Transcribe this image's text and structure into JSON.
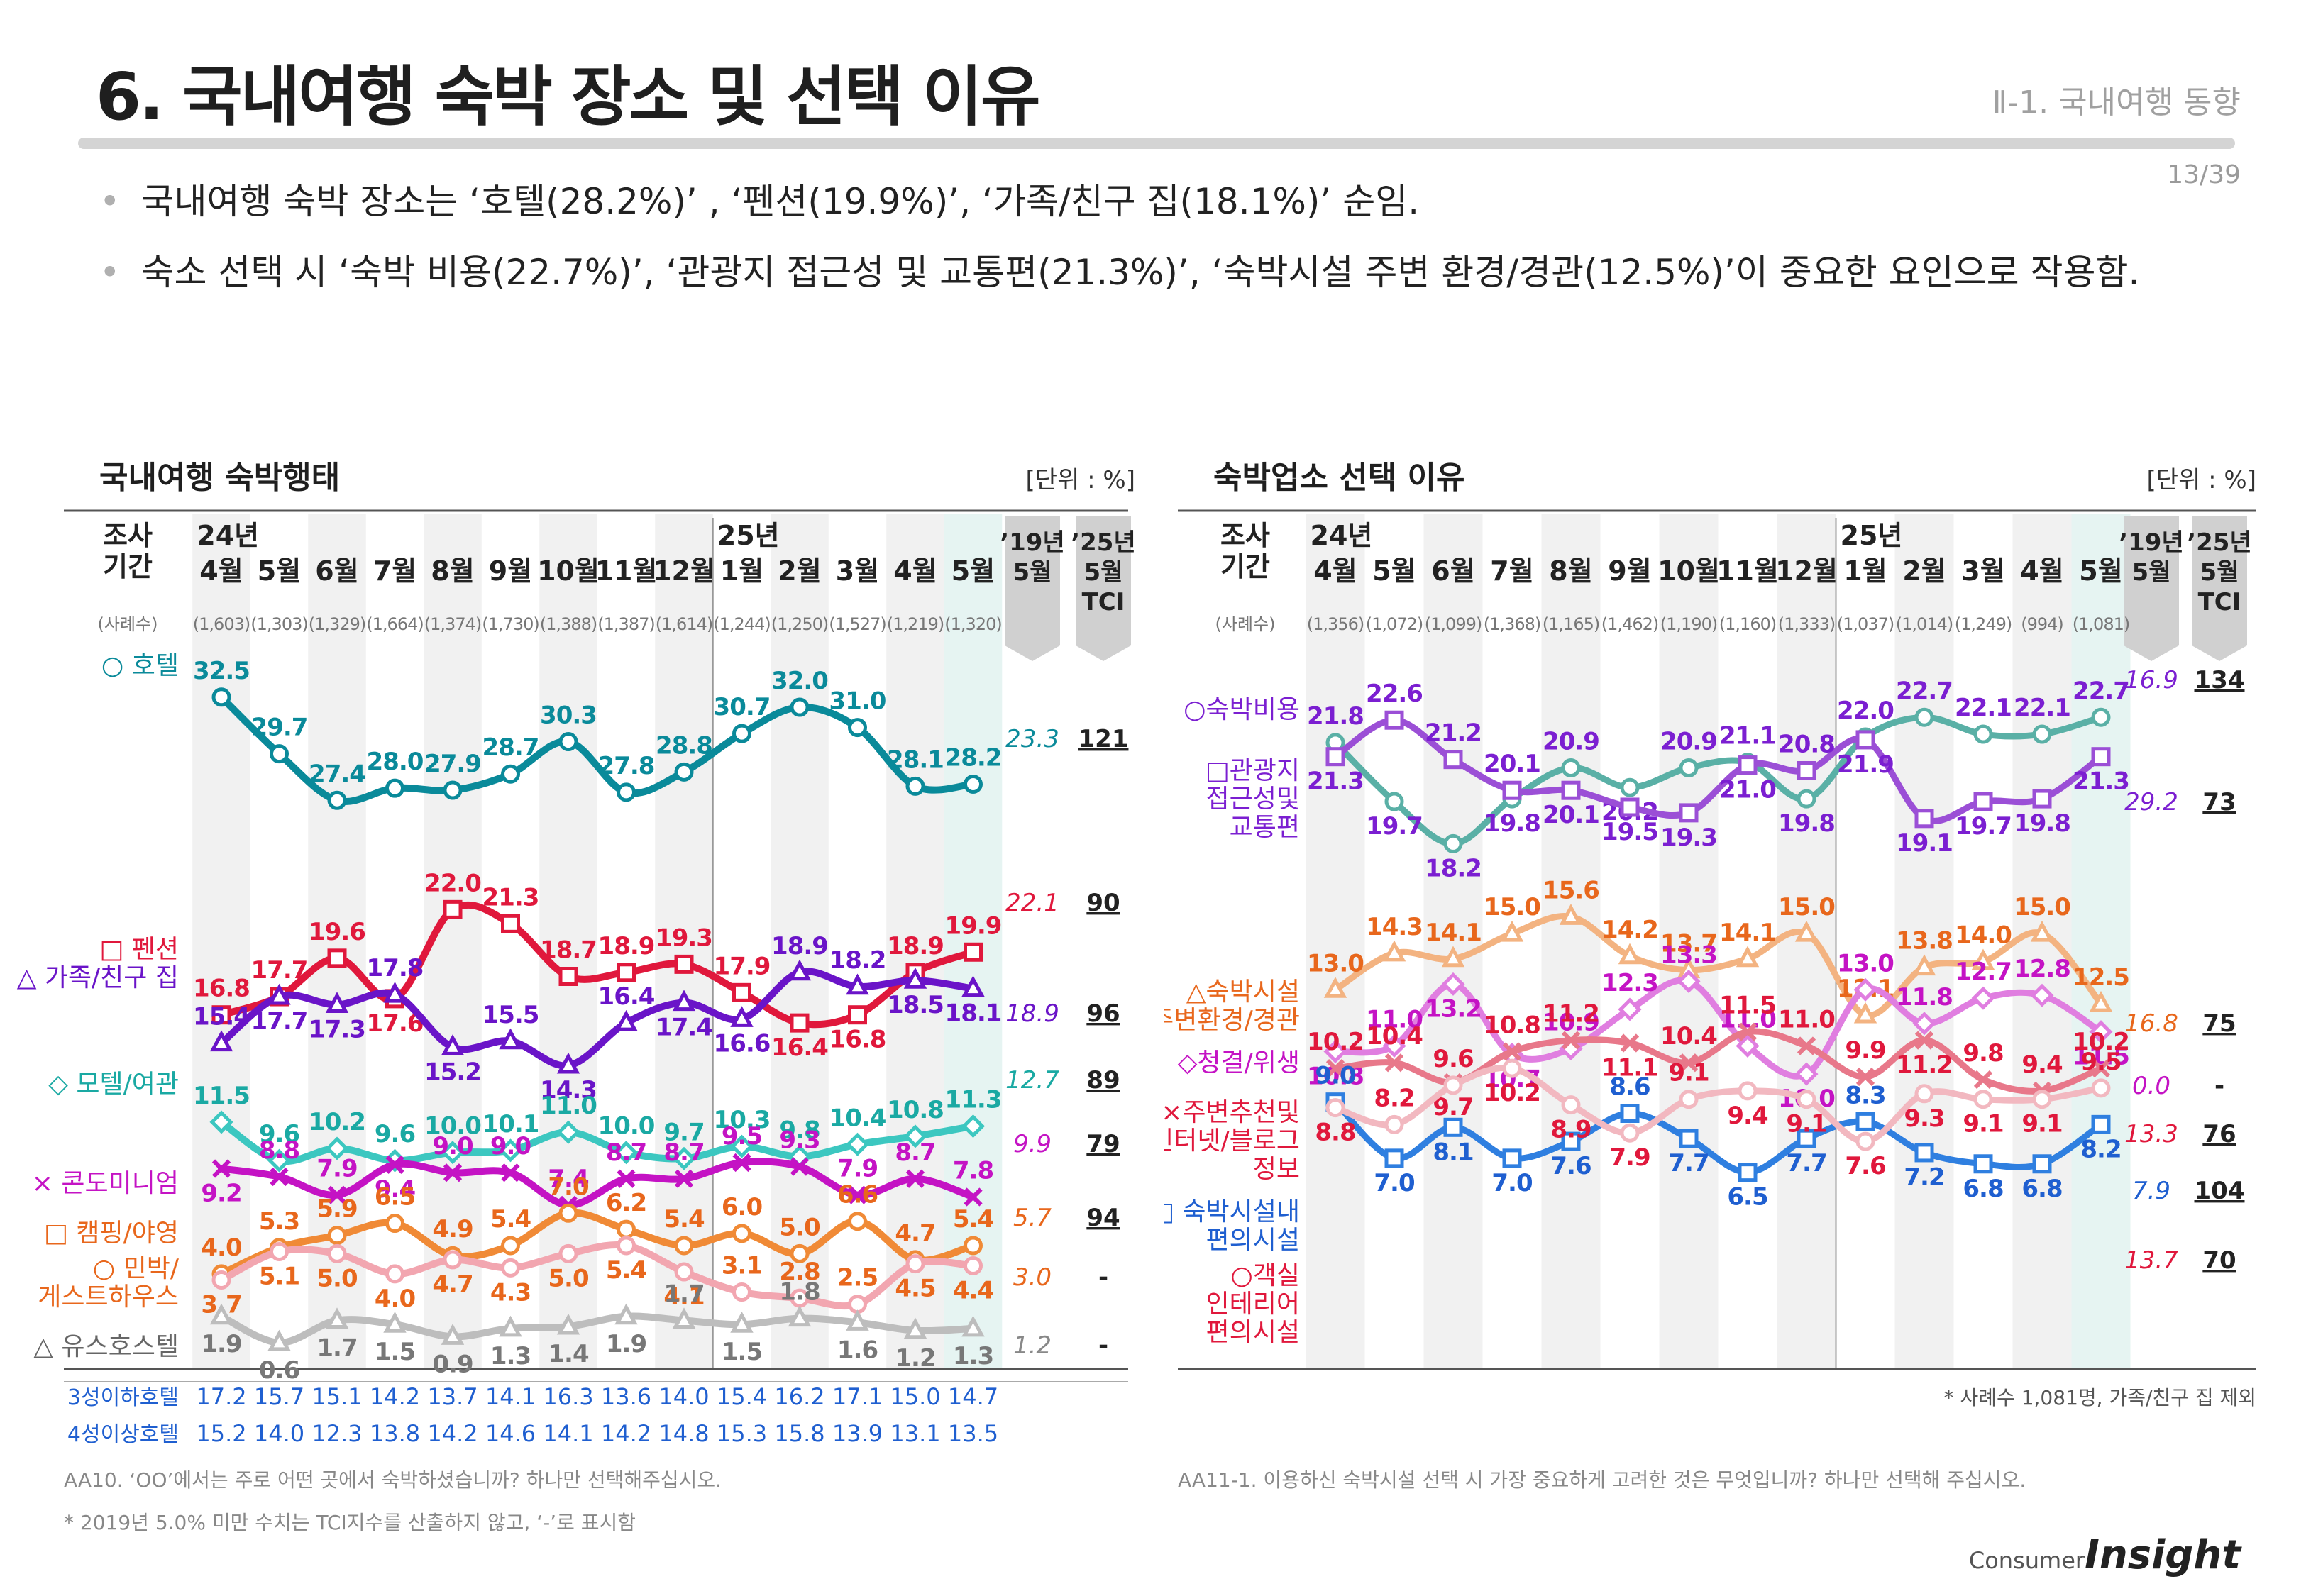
{
  "page": {
    "title": "6. 국내여행 숙박 장소 및 선택 이유",
    "section": "Ⅱ-1. 국내여행 동향",
    "page_number": "13/39",
    "bullets": [
      "국내여행 숙박 장소는 ‘호텔(28.2%)’ , ‘펜션(19.9%)’, ‘가족/친구 집(18.1%)’ 순임.",
      "숙소 선택 시 ‘숙박 비용(22.7%)’, ‘관광지 접근성 및 교통편(21.3%)’, ‘숙박시설 주변 환경/경관(12.5%)’이 중요한 요인으로 작용함."
    ],
    "logo_small": "Consumer",
    "logo_big": "Insight"
  },
  "chart_data": [
    {
      "type": "line",
      "title": "국내여행 숙박행태",
      "unit": "[단위 : %]",
      "period_label": "조사\n기간",
      "sample_label": "(사례수)",
      "year_labels": [
        {
          "index": 0,
          "text": "24년"
        },
        {
          "index": 9,
          "text": "25년"
        }
      ],
      "categories": [
        "4월",
        "5월",
        "6월",
        "7월",
        "8월",
        "9월",
        "10월",
        "11월",
        "12월",
        "1월",
        "2월",
        "3월",
        "4월",
        "5월"
      ],
      "samples": [
        "(1,603)",
        "(1,303)",
        "(1,329)",
        "(1,664)",
        "(1,374)",
        "(1,730)",
        "(1,388)",
        "(1,387)",
        "(1,614)",
        "(1,244)",
        "(1,250)",
        "(1,527)",
        "(1,219)",
        "(1,320)"
      ],
      "extra_headers": [
        "’19년\n5월",
        "’25년\n5월\nTCI"
      ],
      "ylim": [
        0,
        34
      ],
      "series": [
        {
          "name": "○ 호텔",
          "color": "#0a8a9a",
          "marker": "circle",
          "values": [
            32.5,
            29.7,
            27.4,
            28.0,
            27.9,
            28.7,
            30.3,
            27.8,
            28.8,
            30.7,
            32.0,
            31.0,
            28.1,
            28.2
          ],
          "y19": "23.3",
          "tci": "121",
          "labelColor": "#0a8a9a"
        },
        {
          "name": "□ 펜션",
          "color": "#e0183c",
          "marker": "square",
          "values": [
            16.8,
            17.7,
            19.6,
            17.6,
            22.0,
            21.3,
            18.7,
            18.9,
            19.3,
            17.9,
            16.4,
            16.8,
            18.9,
            19.9
          ],
          "y19": "22.1",
          "tci": "90",
          "labelColor": "#e0183c"
        },
        {
          "name": "△ 가족/친구 집",
          "color": "#6a14c8",
          "marker": "triangle",
          "values": [
            15.4,
            17.7,
            17.3,
            17.8,
            15.2,
            15.5,
            14.3,
            16.4,
            17.4,
            16.6,
            18.9,
            18.2,
            18.5,
            18.1
          ],
          "y19": "18.9",
          "tci": "96",
          "labelColor": "#6a14c8"
        },
        {
          "name": "◇ 모텔/여관",
          "color": "#3cc7c0",
          "marker": "diamond",
          "values": [
            11.5,
            9.6,
            10.2,
            9.6,
            10.0,
            10.1,
            11.0,
            10.0,
            9.7,
            10.3,
            9.8,
            10.4,
            10.8,
            11.3
          ],
          "y19": "12.7",
          "tci": "89",
          "labelColor": "#1aa9a3"
        },
        {
          "name": "× 콘도미니엄",
          "color": "#c413c4",
          "marker": "x",
          "values": [
            9.2,
            8.8,
            7.9,
            9.4,
            9.0,
            9.0,
            7.4,
            8.7,
            8.7,
            9.5,
            9.3,
            7.9,
            8.7,
            7.8
          ],
          "y19": "9.9",
          "tci": "79",
          "labelColor": "#c413c4"
        },
        {
          "name": "□ 캠핑/야영",
          "color": "#f08a36",
          "marker": "circle",
          "values": [
            4.0,
            5.3,
            5.9,
            6.5,
            4.9,
            5.4,
            7.0,
            6.2,
            5.4,
            6.0,
            5.0,
            6.6,
            4.7,
            5.4
          ],
          "y19": "5.7",
          "tci": "94",
          "labelColor": "#e8671c"
        },
        {
          "name": "○ 민박/게스트하우스",
          "color": "#f2a6b0",
          "marker": "circle",
          "values": [
            3.7,
            5.1,
            5.0,
            4.0,
            4.7,
            4.3,
            5.0,
            5.4,
            4.1,
            3.1,
            2.8,
            2.5,
            4.5,
            4.4
          ],
          "y19": "3.0",
          "tci": "-",
          "labelColor": "#e8671c"
        },
        {
          "name": "△ 유스호스텔",
          "color": "#bdbdbd",
          "marker": "triangle",
          "values": [
            1.9,
            0.6,
            1.7,
            1.5,
            0.9,
            1.3,
            1.4,
            1.9,
            1.7,
            1.5,
            1.8,
            1.6,
            1.2,
            1.3
          ],
          "y19": "1.2",
          "tci": "-",
          "labelColor": "#666666"
        }
      ],
      "table_rows": [
        {
          "label": "3성이하호텔",
          "values": [
            "17.2",
            "15.7",
            "15.1",
            "14.2",
            "13.7",
            "14.1",
            "16.3",
            "13.6",
            "14.0",
            "15.4",
            "16.2",
            "17.1",
            "15.0",
            "14.7"
          ]
        },
        {
          "label": "4성이상호텔",
          "values": [
            "15.2",
            "14.0",
            "12.3",
            "13.8",
            "14.2",
            "14.6",
            "14.1",
            "14.2",
            "14.8",
            "15.3",
            "15.8",
            "13.9",
            "13.1",
            "13.5"
          ]
        }
      ],
      "question": "AA10. ‘OO’에서는 주로 어떤 곳에서 숙박하셨습니까? 하나만 선택해주십시오.",
      "note": "* 2019년 5.0% 미만 수치는 TCI지수를 산출하지 않고, ‘-’로 표시함"
    },
    {
      "type": "line",
      "title": "숙박업소 선택 이유",
      "unit": "[단위 : %]",
      "period_label": "조사\n기간",
      "sample_label": "(사례수)",
      "year_labels": [
        {
          "index": 0,
          "text": "24년"
        },
        {
          "index": 9,
          "text": "25년"
        }
      ],
      "categories": [
        "4월",
        "5월",
        "6월",
        "7월",
        "8월",
        "9월",
        "10월",
        "11월",
        "12월",
        "1월",
        "2월",
        "3월",
        "4월",
        "5월"
      ],
      "samples": [
        "(1,356)",
        "(1,072)",
        "(1,099)",
        "(1,368)",
        "(1,165)",
        "(1,462)",
        "(1,190)",
        "(1,160)",
        "(1,333)",
        "(1,037)",
        "(1,014)",
        "(1,249)",
        "(994)",
        "(1,081)"
      ],
      "extra_headers": [
        "’19년\n5월",
        "’25년\n5월\nTCI"
      ],
      "ylim": [
        0,
        24.5
      ],
      "series": [
        {
          "name": "○ 숙박비용",
          "color": "#5ab0a6",
          "marker": "circle",
          "values": [
            21.8,
            19.7,
            18.2,
            19.8,
            20.9,
            20.2,
            20.9,
            21.1,
            19.8,
            22.0,
            22.7,
            22.1,
            22.1,
            22.7
          ],
          "y19": "16.9",
          "tci": "134",
          "labelColor": "#7b1fd1"
        },
        {
          "name": "□ 관광지 접근성 및 교통편",
          "color": "#9b4fd6",
          "marker": "square",
          "values": [
            21.3,
            22.6,
            21.2,
            20.1,
            20.1,
            19.5,
            19.3,
            21.0,
            20.8,
            21.9,
            19.1,
            19.7,
            19.8,
            21.3
          ],
          "y19": "29.2",
          "tci": "73",
          "labelColor": "#7b1fd1"
        },
        {
          "name": "△ 숙박시설 주변환경/경관",
          "color": "#f3b381",
          "marker": "triangle",
          "values": [
            13.0,
            14.3,
            14.1,
            15.0,
            15.6,
            14.2,
            13.7,
            14.1,
            15.0,
            12.1,
            13.8,
            14.0,
            15.0,
            12.5
          ],
          "y19": "16.8",
          "tci": "75",
          "labelColor": "#e8671c"
        },
        {
          "name": "◇ 청결/위생",
          "color": "#e07ee0",
          "marker": "diamond",
          "values": [
            10.8,
            11.0,
            13.2,
            10.7,
            10.9,
            12.3,
            13.3,
            11.0,
            10.0,
            13.0,
            11.8,
            12.7,
            12.8,
            11.5
          ],
          "y19": "0.0",
          "tci": "-",
          "labelColor": "#c413c4"
        },
        {
          "name": "× 주변추천 및 인터넷/블로그 정보",
          "color": "#e8788a",
          "marker": "x",
          "values": [
            10.2,
            10.4,
            9.7,
            10.8,
            11.2,
            11.1,
            10.4,
            11.5,
            11.0,
            9.9,
            11.2,
            9.8,
            9.4,
            10.2
          ],
          "y19": "13.3",
          "tci": "76",
          "labelColor": "#e0183c"
        },
        {
          "name": "□ 숙박시설 내 편의시설",
          "color": "#2f7fe0",
          "marker": "square",
          "values": [
            9.0,
            7.0,
            8.1,
            7.0,
            7.6,
            8.6,
            7.7,
            6.5,
            7.7,
            8.3,
            7.2,
            6.8,
            6.8,
            8.2
          ],
          "y19": "7.9",
          "tci": "104",
          "labelColor": "#1f5fd0"
        },
        {
          "name": "○ 객실 인테리어 편의시설",
          "color": "#f2b8c0",
          "marker": "circle",
          "values": [
            8.8,
            8.2,
            9.6,
            10.2,
            8.9,
            7.9,
            9.1,
            9.4,
            9.1,
            7.6,
            9.3,
            9.1,
            9.1,
            9.5
          ],
          "y19": "13.7",
          "tci": "70",
          "labelColor": "#e0183c"
        }
      ],
      "footnote_right": "* 사례수 1,081명, 가족/친구 집 제외",
      "question": "AA11-1. 이용하신 숙박시설 선택 시 가장 중요하게 고려한 것은 무엇입니까? 하나만 선택해 주십시오."
    }
  ]
}
